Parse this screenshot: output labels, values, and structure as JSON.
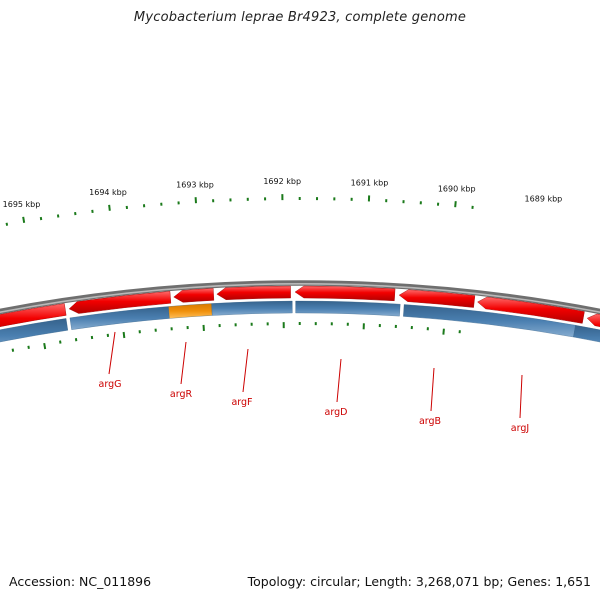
{
  "header": {
    "title": "Mycobacterium leprae Br4923, complete genome"
  },
  "footer": {
    "accession": "Accession: NC_011896",
    "summary": "Topology: circular; Length: 3,268,071 bp; Genes: 1,651"
  },
  "scale": {
    "tick_labels": [
      "1695 kbp",
      "1694 kbp",
      "1693 kbp",
      "1692 kbp",
      "1691 kbp",
      "1690 kbp",
      "1689 kbp"
    ]
  },
  "genes": [
    {
      "name": "argG"
    },
    {
      "name": "argR"
    },
    {
      "name": "argF"
    },
    {
      "name": "argD"
    },
    {
      "name": "argB"
    },
    {
      "name": "argJ"
    }
  ],
  "colors": {
    "backbone": "#8a8a8a",
    "forward_feature": "#f20000",
    "cds": "#4a7fb0",
    "highlight_cds": "#f0900a",
    "ticks": "#1b7a1b",
    "gene_label": "#cc0000",
    "label_line": "#cc0000"
  }
}
